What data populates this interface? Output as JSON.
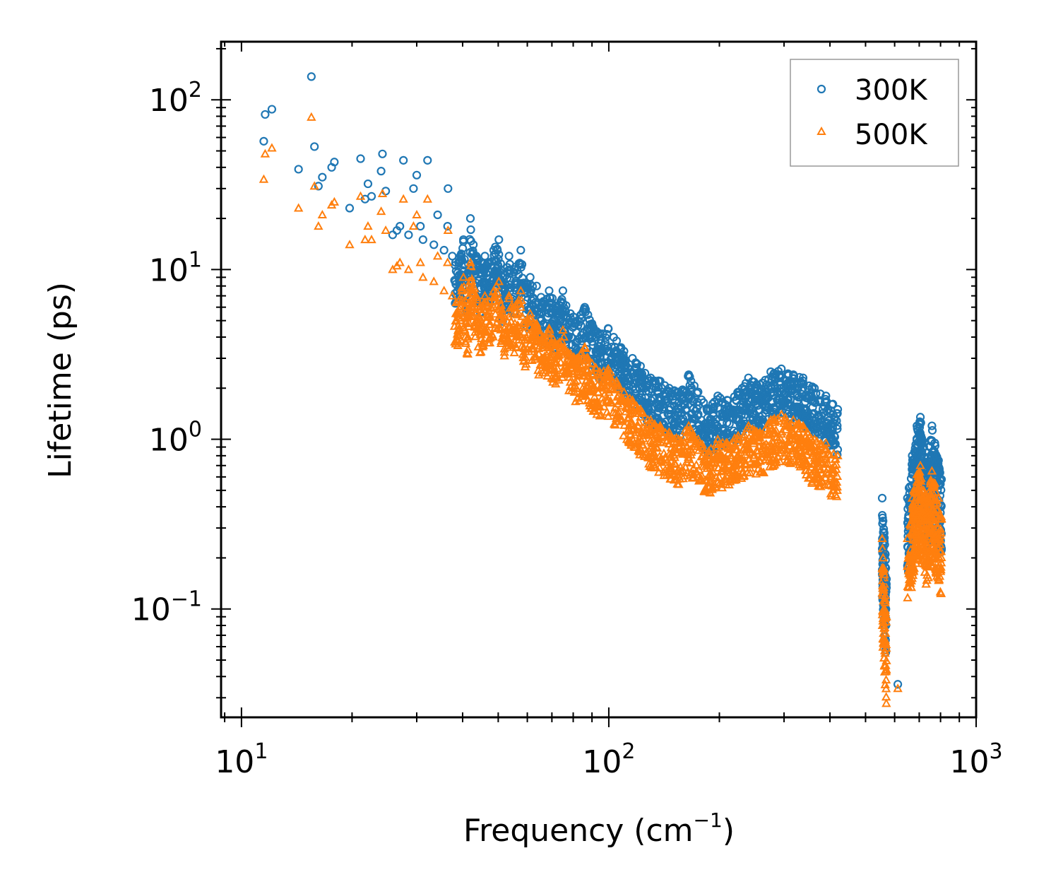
{
  "chart_data": {
    "type": "scatter",
    "title": "",
    "xlabel": "Frequency (cm",
    "xlabel_sup": "−1",
    "xlabel_tail": ")",
    "ylabel": "Lifetime (ps)",
    "xscale": "log",
    "yscale": "log",
    "xlim": [
      8.8,
      1000
    ],
    "ylim": [
      0.023,
      220
    ],
    "grid": false,
    "legend_position": "top-right",
    "x_ticks": [
      {
        "value": 10,
        "base": "10",
        "exp": "1"
      },
      {
        "value": 100,
        "base": "10",
        "exp": "2"
      },
      {
        "value": 1000,
        "base": "10",
        "exp": "3"
      }
    ],
    "y_ticks": [
      {
        "value": 0.1,
        "base": "10",
        "exp": "−1"
      },
      {
        "value": 1,
        "base": "10",
        "exp": "0"
      },
      {
        "value": 10,
        "base": "10",
        "exp": "1"
      },
      {
        "value": 100,
        "base": "10",
        "exp": "2"
      }
    ],
    "series": [
      {
        "name": "300K",
        "marker": "circle",
        "color": "#1f77b4",
        "points": [
          [
            11.5,
            57
          ],
          [
            11.6,
            82
          ],
          [
            12.1,
            88
          ],
          [
            14.3,
            39
          ],
          [
            15.5,
            137
          ],
          [
            15.8,
            53
          ],
          [
            16.2,
            31
          ],
          [
            16.6,
            35
          ],
          [
            17.6,
            40
          ],
          [
            17.9,
            43
          ],
          [
            19.7,
            23
          ],
          [
            21.1,
            45
          ],
          [
            21.7,
            26
          ],
          [
            22.1,
            32
          ],
          [
            22.6,
            27
          ],
          [
            24.0,
            38
          ],
          [
            24.2,
            48
          ],
          [
            24.7,
            29
          ],
          [
            25.8,
            16
          ],
          [
            26.5,
            17
          ],
          [
            27.0,
            18
          ],
          [
            27.6,
            44
          ],
          [
            28.5,
            16
          ],
          [
            29.4,
            30
          ],
          [
            30.0,
            36
          ],
          [
            30.7,
            18
          ],
          [
            31.2,
            15
          ],
          [
            32.1,
            44
          ],
          [
            33.4,
            14
          ],
          [
            34.2,
            21
          ],
          [
            35.6,
            13
          ],
          [
            36.4,
            18
          ],
          [
            36.5,
            30
          ],
          [
            37.5,
            12
          ],
          [
            39.0,
            11
          ],
          [
            40.2,
            15
          ],
          [
            41.2,
            9.5
          ],
          [
            42.0,
            20
          ],
          [
            43.6,
            12
          ],
          [
            44.5,
            10
          ],
          [
            46.0,
            12
          ],
          [
            47.3,
            11
          ],
          [
            48.6,
            13
          ],
          [
            50.2,
            15
          ],
          [
            51.5,
            9.0
          ],
          [
            53.5,
            12
          ],
          [
            55.4,
            10
          ],
          [
            57.6,
            13
          ],
          [
            58.9,
            8.0
          ],
          [
            61.1,
            9.0
          ],
          [
            63.6,
            8.0
          ],
          [
            66.4,
            6.5
          ],
          [
            68.8,
            7.5
          ],
          [
            72.0,
            6.0
          ],
          [
            75.0,
            7.5
          ],
          [
            78.6,
            5.5
          ],
          [
            82.2,
            5.0
          ],
          [
            86.0,
            6.0
          ],
          [
            90.0,
            4.8
          ],
          [
            94.5,
            4.2
          ],
          [
            99.6,
            4.5
          ],
          [
            105,
            3.8
          ],
          [
            110,
            3.3
          ],
          [
            116,
            3.0
          ],
          [
            122,
            2.7
          ],
          [
            130,
            2.3
          ],
          [
            138,
            2.2
          ],
          [
            146,
            2.0
          ],
          [
            155,
            1.9
          ],
          [
            165,
            2.4
          ],
          [
            175,
            1.9
          ],
          [
            187,
            1.5
          ],
          [
            198,
            1.8
          ],
          [
            210,
            1.7
          ],
          [
            225,
            1.9
          ],
          [
            240,
            2.3
          ],
          [
            258,
            2.1
          ],
          [
            276,
            2.5
          ],
          [
            295,
            2.6
          ],
          [
            318,
            2.4
          ],
          [
            338,
            2.3
          ],
          [
            363,
            2.0
          ],
          [
            390,
            1.8
          ],
          [
            420,
            1.5
          ],
          [
            555,
            0.45
          ],
          [
            558,
            0.33
          ],
          [
            562,
            0.28
          ],
          [
            566,
            0.21
          ],
          [
            570,
            0.15
          ],
          [
            612,
            0.036
          ],
          [
            650,
            0.45
          ],
          [
            670,
            0.8
          ],
          [
            690,
            1.2
          ],
          [
            705,
            1.35
          ],
          [
            720,
            0.9
          ],
          [
            735,
            0.7
          ],
          [
            758,
            1.2
          ],
          [
            772,
            0.95
          ],
          [
            790,
            0.75
          ],
          [
            805,
            0.58
          ]
        ]
      },
      {
        "name": "500K",
        "marker": "triangle",
        "color": "#ff7f0e",
        "points": [
          [
            11.5,
            34
          ],
          [
            11.6,
            48
          ],
          [
            12.1,
            52
          ],
          [
            14.3,
            23
          ],
          [
            15.5,
            79
          ],
          [
            15.8,
            31
          ],
          [
            16.2,
            18
          ],
          [
            16.6,
            21
          ],
          [
            17.6,
            24
          ],
          [
            17.9,
            25
          ],
          [
            19.7,
            14
          ],
          [
            21.1,
            27
          ],
          [
            21.7,
            15
          ],
          [
            22.1,
            18
          ],
          [
            22.6,
            15
          ],
          [
            24.0,
            22
          ],
          [
            24.2,
            28
          ],
          [
            24.7,
            17
          ],
          [
            25.8,
            10
          ],
          [
            26.5,
            10.5
          ],
          [
            27.0,
            11
          ],
          [
            27.6,
            26
          ],
          [
            28.5,
            10
          ],
          [
            29.4,
            18
          ],
          [
            30.0,
            21
          ],
          [
            30.7,
            11
          ],
          [
            31.2,
            9
          ],
          [
            32.1,
            26
          ],
          [
            33.4,
            8.5
          ],
          [
            34.2,
            12
          ],
          [
            35.6,
            7.5
          ],
          [
            36.4,
            11
          ],
          [
            36.5,
            17
          ],
          [
            37.5,
            7.0
          ],
          [
            39.0,
            6.5
          ],
          [
            40.2,
            9.0
          ],
          [
            41.2,
            5.5
          ],
          [
            42.0,
            11
          ],
          [
            43.6,
            7.0
          ],
          [
            44.5,
            6.0
          ],
          [
            46.0,
            7.0
          ],
          [
            47.3,
            6.5
          ],
          [
            48.6,
            7.5
          ],
          [
            50.2,
            8.5
          ],
          [
            51.5,
            5.5
          ],
          [
            53.5,
            7.0
          ],
          [
            55.4,
            6.0
          ],
          [
            57.6,
            7.5
          ],
          [
            58.9,
            4.8
          ],
          [
            61.1,
            5.5
          ],
          [
            63.6,
            4.8
          ],
          [
            66.4,
            4.0
          ],
          [
            68.8,
            4.5
          ],
          [
            72.0,
            3.6
          ],
          [
            75.0,
            4.4
          ],
          [
            78.6,
            3.2
          ],
          [
            82.2,
            3.0
          ],
          [
            86.0,
            3.5
          ],
          [
            90.0,
            2.8
          ],
          [
            94.5,
            2.5
          ],
          [
            99.6,
            2.6
          ],
          [
            105,
            2.2
          ],
          [
            110,
            1.9
          ],
          [
            116,
            1.7
          ],
          [
            122,
            1.5
          ],
          [
            130,
            1.3
          ],
          [
            138,
            1.2
          ],
          [
            146,
            1.1
          ],
          [
            155,
            1.0
          ],
          [
            165,
            1.2
          ],
          [
            175,
            1.0
          ],
          [
            187,
            0.85
          ],
          [
            198,
            1.0
          ],
          [
            210,
            0.95
          ],
          [
            225,
            1.05
          ],
          [
            240,
            1.2
          ],
          [
            258,
            1.1
          ],
          [
            276,
            1.3
          ],
          [
            295,
            1.4
          ],
          [
            318,
            1.3
          ],
          [
            338,
            1.2
          ],
          [
            363,
            1.0
          ],
          [
            390,
            0.95
          ],
          [
            420,
            0.8
          ],
          [
            555,
            0.26
          ],
          [
            558,
            0.2
          ],
          [
            562,
            0.16
          ],
          [
            566,
            0.12
          ],
          [
            570,
            0.09
          ],
          [
            612,
            0.034
          ],
          [
            650,
            0.26
          ],
          [
            670,
            0.45
          ],
          [
            690,
            0.62
          ],
          [
            705,
            0.7
          ],
          [
            720,
            0.5
          ],
          [
            735,
            0.42
          ],
          [
            758,
            0.65
          ],
          [
            772,
            0.55
          ],
          [
            790,
            0.45
          ],
          [
            805,
            0.34
          ]
        ]
      }
    ]
  }
}
